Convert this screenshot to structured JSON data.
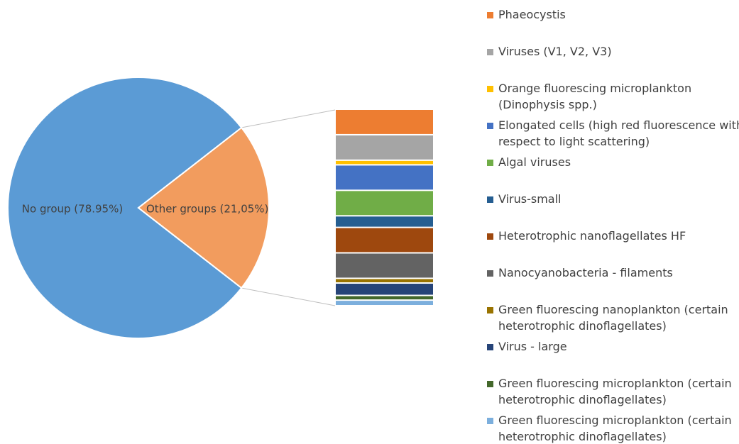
{
  "chart_data": [
    {
      "type": "pie",
      "categories": [
        "No group",
        "Other groups"
      ],
      "values": [
        78.95,
        21.05
      ],
      "value_labels": [
        "No group (78.95%)",
        "Other groups (21,05%)"
      ],
      "colors": [
        "#5b9bd5",
        "#f29c5e"
      ]
    },
    {
      "type": "bar",
      "series": [
        {
          "name": "Phaeocystis",
          "color": "#ed7d31",
          "values": [
            2.73
          ]
        },
        {
          "name": "Viruses (V1, V2, V3)",
          "color": "#a5a5a5",
          "values": [
            2.73
          ]
        },
        {
          "name": "Orange fluorescing microplankton (Dinophysis spp.)",
          "color": "#ffc000",
          "values": [
            0.5
          ]
        },
        {
          "name": "Elongated cells (high red fluorescence with respect to light scattering)",
          "color": "#4472c4",
          "values": [
            2.73
          ]
        },
        {
          "name": "Algal viruses",
          "color": "#70ad47",
          "values": [
            2.73
          ]
        },
        {
          "name": "Virus-small",
          "color": "#255e91",
          "values": [
            1.24
          ]
        },
        {
          "name": "Heterotrophic nanoflagellates HF",
          "color": "#9e480e",
          "values": [
            2.73
          ]
        },
        {
          "name": "Nanocyanobacteria - filaments",
          "color": "#636363",
          "values": [
            2.73
          ]
        },
        {
          "name": "Green fluorescing nanoplankton (certain heterotrophic dinoflagellates)",
          "color": "#997300",
          "values": [
            0.5
          ]
        },
        {
          "name": "Virus - large",
          "color": "#264478",
          "values": [
            1.33
          ]
        },
        {
          "name": "Green fluorescing microplankton (certain heterotrophic dinoflagellates)",
          "color": "#43682b",
          "values": [
            0.5
          ]
        },
        {
          "name": "Green fluorescing microplankton (certain heterotrophic dinoflagellates)",
          "color": "#7cafdd",
          "values": [
            0.6
          ]
        }
      ]
    }
  ]
}
